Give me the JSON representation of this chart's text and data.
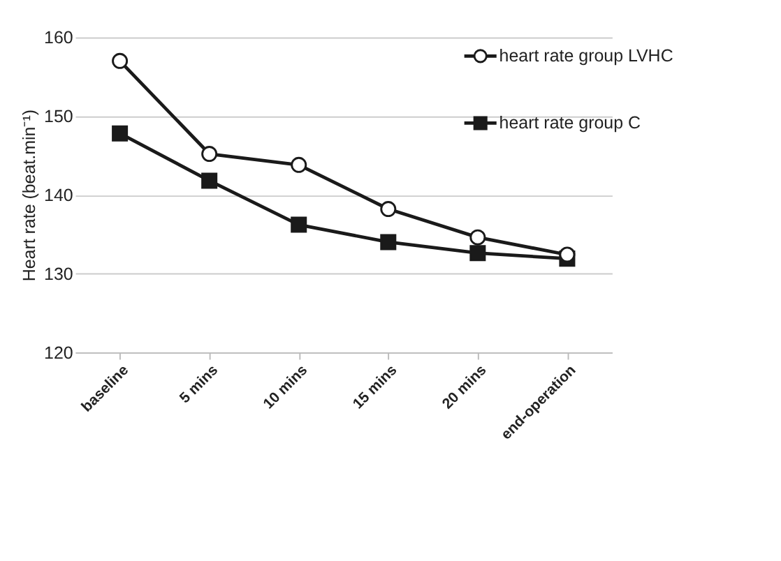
{
  "chart_data": {
    "type": "line",
    "ylabel": "Heart rate (beat.min⁻¹)",
    "categories": [
      "baseline",
      "5 mins",
      "10 mins",
      "15 mins",
      "20 mins",
      "end-operation"
    ],
    "series": [
      {
        "name": "heart rate group LVHC",
        "color": "#1a1a1a",
        "marker": "circle",
        "values": [
          157,
          145.2,
          143.8,
          138.2,
          134.6,
          132.4
        ]
      },
      {
        "name": "heart rate group C",
        "color": "#1a1a1a",
        "marker": "square",
        "values": [
          147.8,
          141.8,
          136.2,
          134,
          132.6,
          131.9
        ]
      }
    ],
    "ylim": [
      120,
      160
    ],
    "yticks": [
      120,
      130,
      140,
      150,
      160
    ],
    "grid": "y",
    "legend": "top right",
    "line_style": "solid"
  }
}
